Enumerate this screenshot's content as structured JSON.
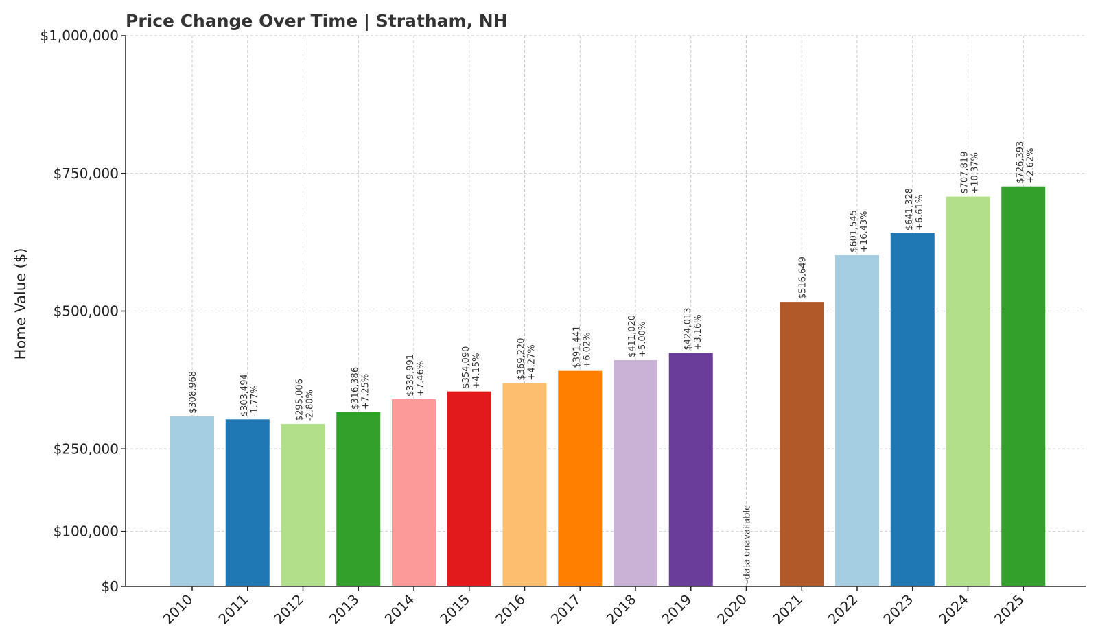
{
  "chart_data": {
    "type": "bar",
    "title": "Price Change Over Time | Stratham, NH",
    "ylabel": "Home Value ($)",
    "xlabel": "",
    "ylim": [
      0,
      1000000
    ],
    "yticks": [
      0,
      100000,
      250000,
      500000,
      750000,
      1000000
    ],
    "ytick_labels": [
      "$0",
      "$100,000",
      "$250,000",
      "$500,000",
      "$750,000",
      "$1,000,000"
    ],
    "grid": true,
    "categories": [
      "2010",
      "2011",
      "2012",
      "2013",
      "2014",
      "2015",
      "2016",
      "2017",
      "2018",
      "2019",
      "2020",
      "2021",
      "2022",
      "2023",
      "2024",
      "2025"
    ],
    "values": [
      308968,
      303494,
      295006,
      316386,
      339991,
      354090,
      369220,
      391441,
      411020,
      424013,
      null,
      516649,
      601545,
      641328,
      707819,
      726393
    ],
    "value_labels": [
      "$308,968",
      "$303,494",
      "$295,006",
      "$316,386",
      "$339,991",
      "$354,090",
      "$369,220",
      "$391,441",
      "$411,020",
      "$424,013",
      "",
      "$516,649",
      "$601,545",
      "$641,328",
      "$707,819",
      "$726,393"
    ],
    "change_labels": [
      "",
      "-1.77%",
      "-2.80%",
      "+7.25%",
      "+7.46%",
      "+4.15%",
      "+4.27%",
      "+6.02%",
      "+5.00%",
      "+3.16%",
      "",
      "",
      "+16.43%",
      "+6.61%",
      "+10.37%",
      "+2.62%"
    ],
    "missing_label": "data unavailable",
    "colors": [
      "#a6cee3",
      "#1f78b4",
      "#b2df8a",
      "#33a02c",
      "#fb9a99",
      "#e31a1c",
      "#fdbf6f",
      "#ff7f00",
      "#cab2d6",
      "#6a3d9a",
      "#ffff99",
      "#b15928",
      "#a6cee3",
      "#1f78b4",
      "#b2df8a",
      "#33a02c"
    ]
  }
}
